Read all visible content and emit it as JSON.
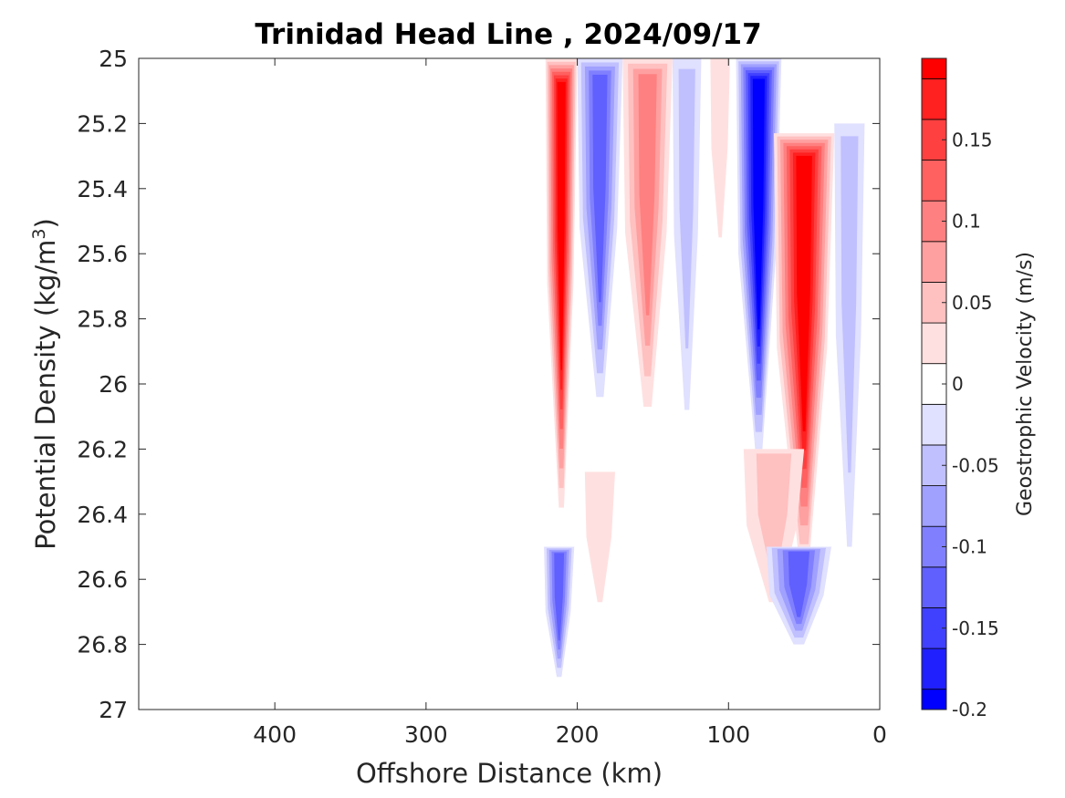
{
  "chart_data": {
    "type": "heatmap",
    "title": "Trinidad Head Line , 2024/09/17",
    "xlabel": "Offshore Distance (km)",
    "ylabel": "Potential Density (kg/m",
    "ylabel_sup": "3",
    "ylabel_close": ")",
    "xlim": [
      490,
      0
    ],
    "x_reversed": true,
    "ylim": [
      25,
      27
    ],
    "y_reversed": true,
    "xticks": [
      400,
      300,
      200,
      100,
      0
    ],
    "yticks": [
      25,
      25.2,
      25.4,
      25.6,
      25.8,
      26,
      26.2,
      26.4,
      26.6,
      26.8,
      27
    ],
    "ytick_labels": [
      "25",
      "25.2",
      "25.4",
      "25.6",
      "25.8",
      "26",
      "26.2",
      "26.4",
      "26.6",
      "26.8",
      "27"
    ],
    "colorbar": {
      "label": "Geostrophic Velocity (m/s)",
      "range": [
        -0.2,
        0.2
      ],
      "levels": [
        -0.2,
        -0.175,
        -0.15,
        -0.125,
        -0.1,
        -0.075,
        -0.05,
        -0.025,
        0,
        0.025,
        0.05,
        0.075,
        0.1,
        0.125,
        0.15,
        0.175,
        0.2
      ],
      "colors": [
        "#0000ff",
        "#2020ff",
        "#4040ff",
        "#6060ff",
        "#8080ff",
        "#a0a0ff",
        "#c0c0ff",
        "#e0e0ff",
        "#ffffff",
        "#ffe0e0",
        "#ffc0c0",
        "#ffa0a0",
        "#ff8080",
        "#ff6060",
        "#ff4040",
        "#ff2020",
        "#ff0000"
      ],
      "ticks": [
        0.15,
        0.1,
        0.05,
        0,
        -0.05,
        -0.1,
        -0.15,
        -0.2
      ],
      "tick_labels": [
        "0.15",
        "0.1",
        "0.05",
        "0",
        "-0.05",
        "-0.1",
        "-0.15",
        "-0.2"
      ]
    },
    "features": [
      {
        "name": "red jet ~215 km",
        "x_left": 221,
        "x_right": 200,
        "y_top": 25.0,
        "y_bottom": 26.38,
        "peak": 0.2
      },
      {
        "name": "blue band ~185 km",
        "x_left": 200,
        "x_right": 170,
        "y_top": 25.0,
        "y_bottom": 26.04,
        "peak": -0.13
      },
      {
        "name": "red band ~155 km",
        "x_left": 170,
        "x_right": 137,
        "y_top": 25.0,
        "y_bottom": 26.07,
        "peak": 0.11
      },
      {
        "name": "light blue ~130 km",
        "x_left": 137,
        "x_right": 118,
        "y_top": 25.0,
        "y_bottom": 26.08,
        "peak": -0.04
      },
      {
        "name": "light red ~105 km",
        "x_left": 112,
        "x_right": 99,
        "y_top": 25.0,
        "y_bottom": 25.55,
        "peak": 0.03
      },
      {
        "name": "blue jet ~80 km",
        "x_left": 95,
        "x_right": 65,
        "y_top": 25.0,
        "y_bottom": 26.2,
        "peak": -0.19
      },
      {
        "name": "red jet ~50 km",
        "x_left": 70,
        "x_right": 30,
        "y_top": 25.23,
        "y_bottom": 26.55,
        "peak": 0.2
      },
      {
        "name": "light blue ~20 km",
        "x_left": 30,
        "x_right": 10,
        "y_top": 25.2,
        "y_bottom": 26.5,
        "peak": -0.06
      },
      {
        "name": "light red ~185 km deep",
        "x_left": 195,
        "x_right": 175,
        "y_top": 26.27,
        "y_bottom": 26.67,
        "peak": 0.03
      },
      {
        "name": "red lobe ~80 km deep",
        "x_left": 90,
        "x_right": 50,
        "y_top": 26.2,
        "y_bottom": 26.67,
        "peak": 0.05
      },
      {
        "name": "blue ~215 km deep",
        "x_left": 222,
        "x_right": 202,
        "y_top": 26.5,
        "y_bottom": 26.9,
        "peak": -0.12
      },
      {
        "name": "blue ~55 km deep",
        "x_left": 75,
        "x_right": 32,
        "y_top": 26.5,
        "y_bottom": 26.8,
        "peak": -0.12
      }
    ]
  }
}
